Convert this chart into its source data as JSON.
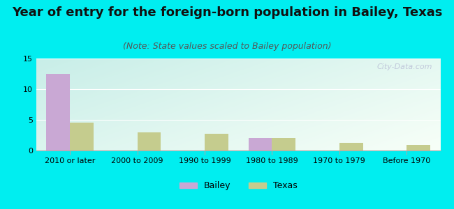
{
  "title": "Year of entry for the foreign-born population in Bailey, Texas",
  "subtitle": "(Note: State values scaled to Bailey population)",
  "categories": [
    "2010 or later",
    "2000 to 2009",
    "1990 to 1999",
    "1980 to 1989",
    "1970 to 1979",
    "Before 1970"
  ],
  "bailey_values": [
    12.5,
    0,
    0,
    2.0,
    0,
    0
  ],
  "texas_values": [
    4.5,
    3.0,
    2.7,
    2.1,
    1.3,
    0.9
  ],
  "bailey_color": "#c9a8d4",
  "texas_color": "#c5cc8e",
  "background_color": "#00eef0",
  "ylim": [
    0,
    15
  ],
  "yticks": [
    0,
    5,
    10,
    15
  ],
  "bar_width": 0.35,
  "title_fontsize": 13,
  "subtitle_fontsize": 9,
  "tick_fontsize": 8,
  "legend_fontsize": 9,
  "watermark_text": "City-Data.com"
}
